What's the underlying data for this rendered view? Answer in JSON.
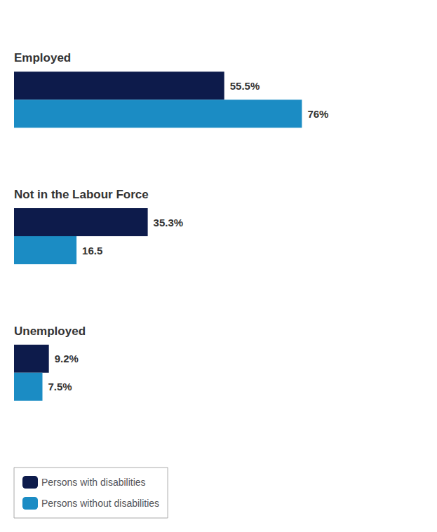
{
  "chart_data": {
    "type": "bar",
    "orientation": "horizontal",
    "categories": [
      "Employed",
      "Not in the Labour Force",
      "Unemployed"
    ],
    "series": [
      {
        "name": "Persons with disabilities",
        "color": "#0d1b4b",
        "values": [
          55.5,
          35.3,
          9.2
        ],
        "value_labels": [
          "55.5%",
          "35.3%",
          "9.2%"
        ]
      },
      {
        "name": "Persons without disabilities",
        "color": "#1b8cc4",
        "values": [
          76.0,
          16.5,
          7.5
        ],
        "value_labels": [
          "76%",
          "16.5",
          "7.5%"
        ]
      }
    ],
    "xlim": [
      0,
      95
    ],
    "data_labels": true,
    "tick_labels": false,
    "grid": false,
    "legend": "lower left"
  }
}
